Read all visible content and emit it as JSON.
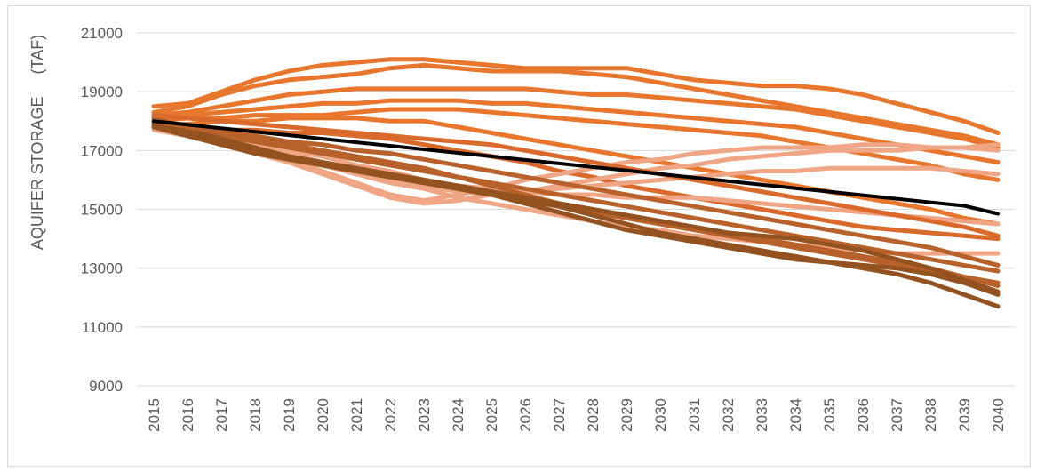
{
  "chart_data": {
    "type": "line",
    "title": "",
    "xlabel": "",
    "ylabel": "AQUIFER STORAGE     (TAF)",
    "ylim": [
      9000,
      21000
    ],
    "yticks": [
      9000,
      11000,
      13000,
      15000,
      17000,
      19000,
      21000
    ],
    "x": [
      2015,
      2016,
      2017,
      2018,
      2019,
      2020,
      2021,
      2022,
      2023,
      2024,
      2025,
      2026,
      2027,
      2028,
      2029,
      2030,
      2031,
      2032,
      2033,
      2034,
      2035,
      2036,
      2037,
      2038,
      2039,
      2040
    ],
    "grid": "horizontal",
    "legend": "none",
    "ensemble_colors": [
      "#e8762c",
      "#f0a585",
      "#b8612a",
      "#93521f",
      "#d96a2b"
    ],
    "series": [
      {
        "color": "#e8762c",
        "width": 5,
        "values": [
          18500,
          18600,
          19000,
          19400,
          19700,
          19900,
          20000,
          20100,
          20100,
          20000,
          19900,
          19800,
          19800,
          19800,
          19800,
          19600,
          19400,
          19300,
          19200,
          19200,
          19100,
          18900,
          18600,
          18300,
          18000,
          17600
        ]
      },
      {
        "color": "#e8762c",
        "width": 5,
        "values": [
          18300,
          18500,
          18900,
          19200,
          19400,
          19500,
          19600,
          19800,
          19900,
          19800,
          19700,
          19700,
          19700,
          19600,
          19500,
          19300,
          19100,
          18900,
          18700,
          18500,
          18300,
          18100,
          17900,
          17700,
          17500,
          17200
        ]
      },
      {
        "color": "#e8762c",
        "width": 5,
        "values": [
          18200,
          18300,
          18500,
          18700,
          18900,
          19000,
          19100,
          19100,
          19100,
          19100,
          19100,
          19100,
          19000,
          18900,
          18900,
          18800,
          18700,
          18600,
          18500,
          18400,
          18200,
          18000,
          17800,
          17600,
          17400,
          17100
        ]
      },
      {
        "color": "#e8762c",
        "width": 5,
        "values": [
          18100,
          18200,
          18300,
          18400,
          18500,
          18600,
          18600,
          18700,
          18700,
          18700,
          18600,
          18600,
          18500,
          18400,
          18300,
          18200,
          18100,
          18000,
          17900,
          17800,
          17600,
          17400,
          17200,
          17000,
          16800,
          16600
        ]
      },
      {
        "color": "#e8762c",
        "width": 5,
        "values": [
          18000,
          18100,
          18100,
          18200,
          18200,
          18200,
          18300,
          18400,
          18400,
          18400,
          18300,
          18200,
          18100,
          18000,
          17900,
          17800,
          17700,
          17600,
          17500,
          17300,
          17100,
          16900,
          16700,
          16500,
          16200,
          16000
        ]
      },
      {
        "color": "#e8762c",
        "width": 5,
        "values": [
          17900,
          17900,
          18000,
          18000,
          18100,
          18100,
          18100,
          18000,
          18000,
          17800,
          17600,
          17400,
          17200,
          17000,
          16800,
          16600,
          16400,
          16200,
          16000,
          15800,
          15600,
          15400,
          15200,
          15000,
          14700,
          14500
        ]
      },
      {
        "color": "#d96a2b",
        "width": 5,
        "values": [
          17800,
          17800,
          17700,
          17700,
          17600,
          17600,
          17500,
          17400,
          17200,
          17000,
          16800,
          16600,
          16300,
          16100,
          15800,
          15600,
          15400,
          15200,
          15000,
          14800,
          14600,
          14400,
          14300,
          14200,
          14100,
          14000
        ]
      },
      {
        "color": "#f0a585",
        "width": 5,
        "values": [
          17900,
          17700,
          17500,
          17200,
          16900,
          16600,
          16300,
          16000,
          15800,
          15600,
          15500,
          15600,
          15800,
          16000,
          16200,
          16400,
          16500,
          16700,
          16800,
          16900,
          17000,
          17000,
          17000,
          17100,
          17100,
          17200
        ]
      },
      {
        "color": "#f0a585",
        "width": 5,
        "values": [
          17800,
          17500,
          17300,
          17000,
          16700,
          16300,
          15900,
          15500,
          15300,
          15500,
          15700,
          16000,
          16200,
          16400,
          16600,
          16700,
          16900,
          17000,
          17100,
          17100,
          17100,
          17200,
          17200,
          17100,
          17100,
          17000
        ]
      },
      {
        "color": "#f0a585",
        "width": 5,
        "values": [
          17700,
          17500,
          17200,
          16900,
          16600,
          16200,
          15800,
          15400,
          15200,
          15300,
          15500,
          15600,
          15700,
          15800,
          15900,
          16000,
          16100,
          16200,
          16300,
          16300,
          16400,
          16400,
          16400,
          16400,
          16300,
          16200
        ]
      },
      {
        "color": "#f0a585",
        "width": 5,
        "values": [
          17800,
          17600,
          17400,
          17200,
          17000,
          16800,
          16500,
          16300,
          16000,
          15800,
          15700,
          15600,
          15500,
          15500,
          15400,
          15400,
          15400,
          15300,
          15200,
          15100,
          15000,
          14900,
          14800,
          14700,
          14600,
          14500
        ]
      },
      {
        "color": "#f0a585",
        "width": 5,
        "values": [
          17800,
          17600,
          17400,
          17100,
          16800,
          16500,
          16200,
          15900,
          15700,
          15400,
          15200,
          15000,
          14800,
          14600,
          14400,
          14300,
          14100,
          14000,
          13900,
          13800,
          13700,
          13600,
          13500,
          13500,
          13500,
          13500
        ]
      },
      {
        "color": "#b8612a",
        "width": 5,
        "values": [
          17900,
          17600,
          17300,
          17000,
          16700,
          16500,
          16300,
          16100,
          15900,
          15700,
          15500,
          15300,
          15100,
          14900,
          14700,
          14500,
          14300,
          14100,
          13900,
          13700,
          13500,
          13300,
          13100,
          12900,
          12700,
          12500
        ]
      },
      {
        "color": "#b8612a",
        "width": 5,
        "values": [
          18000,
          17700,
          17500,
          17300,
          17100,
          16900,
          16700,
          16500,
          16300,
          16100,
          15900,
          15700,
          15500,
          15300,
          15100,
          14900,
          14700,
          14500,
          14300,
          14100,
          13900,
          13700,
          13500,
          13300,
          13100,
          12900
        ]
      },
      {
        "color": "#b8612a",
        "width": 5,
        "values": [
          18100,
          17800,
          17600,
          17400,
          17200,
          17000,
          16800,
          16600,
          16400,
          16100,
          15800,
          15500,
          15200,
          15000,
          14800,
          14600,
          14400,
          14200,
          14000,
          13800,
          13600,
          13400,
          13200,
          13000,
          12700,
          12400
        ]
      },
      {
        "color": "#93521f",
        "width": 5,
        "values": [
          17800,
          17500,
          17200,
          16900,
          16700,
          16500,
          16300,
          16100,
          15900,
          15700,
          15500,
          15200,
          14900,
          14600,
          14300,
          14100,
          13900,
          13700,
          13500,
          13300,
          13200,
          13100,
          13000,
          12800,
          12500,
          12100
        ]
      },
      {
        "color": "#93521f",
        "width": 5,
        "values": [
          18000,
          17700,
          17400,
          17100,
          16800,
          16500,
          16300,
          16100,
          15900,
          15700,
          15500,
          15300,
          15100,
          14800,
          14500,
          14200,
          14000,
          13800,
          13600,
          13400,
          13200,
          13000,
          12800,
          12500,
          12100,
          11700
        ]
      },
      {
        "color": "#93521f",
        "width": 5,
        "values": [
          17900,
          17600,
          17300,
          17000,
          16800,
          16600,
          16400,
          16200,
          16000,
          15800,
          15600,
          15400,
          15200,
          15000,
          14800,
          14600,
          14400,
          14200,
          14100,
          14000,
          13800,
          13600,
          13300,
          13000,
          12600,
          12200
        ]
      },
      {
        "color": "#b8612a",
        "width": 5,
        "values": [
          18000,
          17800,
          17600,
          17500,
          17300,
          17200,
          17000,
          16900,
          16700,
          16500,
          16300,
          16100,
          15900,
          15700,
          15500,
          15300,
          15100,
          14900,
          14700,
          14500,
          14300,
          14100,
          13900,
          13700,
          13400,
          13100
        ]
      },
      {
        "color": "#d96a2b",
        "width": 5,
        "values": [
          18200,
          18100,
          18000,
          17900,
          17800,
          17700,
          17600,
          17500,
          17400,
          17300,
          17200,
          17000,
          16800,
          16600,
          16400,
          16200,
          16000,
          15800,
          15600,
          15400,
          15200,
          15000,
          14800,
          14600,
          14400,
          14100
        ]
      },
      {
        "color": "#000000",
        "width": 4,
        "name": "",
        "values": [
          18000,
          17880,
          17760,
          17640,
          17520,
          17400,
          17280,
          17160,
          17040,
          16920,
          16800,
          16680,
          16560,
          16440,
          16320,
          16200,
          16080,
          15960,
          15840,
          15720,
          15600,
          15480,
          15360,
          15240,
          15120,
          14850
        ]
      }
    ]
  }
}
